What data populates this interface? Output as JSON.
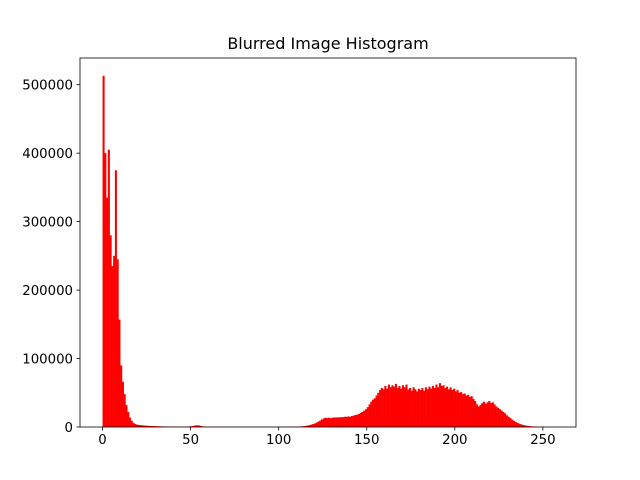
{
  "chart_data": {
    "type": "histogram",
    "title": "Blurred Image Histogram",
    "color": "#ff0000",
    "bins": [
      0,
      1,
      2,
      3,
      4,
      5,
      6,
      7,
      8,
      9,
      10,
      11,
      12,
      13,
      14,
      15,
      16,
      17,
      18,
      19,
      20,
      21,
      22,
      23,
      24,
      25,
      26,
      27,
      28,
      29,
      30,
      31,
      32,
      33,
      34,
      35,
      36,
      37,
      38,
      39,
      40,
      41,
      42,
      43,
      44,
      45,
      46,
      47,
      48,
      49,
      50,
      51,
      52,
      53,
      54,
      55,
      56,
      57,
      58,
      59,
      60,
      61,
      62,
      63,
      64,
      65,
      66,
      67,
      68,
      69,
      70,
      71,
      72,
      73,
      74,
      75,
      76,
      77,
      78,
      79,
      80,
      81,
      82,
      83,
      84,
      85,
      86,
      87,
      88,
      89,
      90,
      91,
      92,
      93,
      94,
      95,
      96,
      97,
      98,
      99,
      100,
      101,
      102,
      103,
      104,
      105,
      106,
      107,
      108,
      109,
      110,
      111,
      112,
      113,
      114,
      115,
      116,
      117,
      118,
      119,
      120,
      121,
      122,
      123,
      124,
      125,
      126,
      127,
      128,
      129,
      130,
      131,
      132,
      133,
      134,
      135,
      136,
      137,
      138,
      139,
      140,
      141,
      142,
      143,
      144,
      145,
      146,
      147,
      148,
      149,
      150,
      151,
      152,
      153,
      154,
      155,
      156,
      157,
      158,
      159,
      160,
      161,
      162,
      163,
      164,
      165,
      166,
      167,
      168,
      169,
      170,
      171,
      172,
      173,
      174,
      175,
      176,
      177,
      178,
      179,
      180,
      181,
      182,
      183,
      184,
      185,
      186,
      187,
      188,
      189,
      190,
      191,
      192,
      193,
      194,
      195,
      196,
      197,
      198,
      199,
      200,
      201,
      202,
      203,
      204,
      205,
      206,
      207,
      208,
      209,
      210,
      211,
      212,
      213,
      214,
      215,
      216,
      217,
      218,
      219,
      220,
      221,
      222,
      223,
      224,
      225,
      226,
      227,
      228,
      229,
      230,
      231,
      232,
      233,
      234,
      235,
      236,
      237,
      238,
      239,
      240,
      241,
      242,
      243,
      244,
      245,
      246,
      247,
      248,
      249,
      250,
      251,
      252,
      253,
      254,
      255,
      256
    ],
    "counts": [
      513000,
      400000,
      335000,
      405000,
      280000,
      235000,
      250000,
      375000,
      245000,
      157000,
      90000,
      66000,
      48000,
      32000,
      22000,
      14000,
      9000,
      6000,
      4500,
      3500,
      3000,
      2800,
      2500,
      2200,
      2000,
      1800,
      1600,
      1500,
      1400,
      1300,
      1200,
      1100,
      1000,
      900,
      800,
      700,
      650,
      600,
      550,
      500,
      480,
      460,
      440,
      420,
      400,
      400,
      420,
      500,
      700,
      900,
      1200,
      1600,
      2200,
      2500,
      2400,
      1800,
      1000,
      600,
      400,
      350,
      300,
      300,
      300,
      300,
      300,
      300,
      300,
      300,
      300,
      300,
      280,
      280,
      280,
      280,
      280,
      280,
      280,
      280,
      280,
      280,
      260,
      260,
      260,
      260,
      260,
      260,
      260,
      260,
      260,
      260,
      250,
      250,
      250,
      250,
      250,
      250,
      250,
      250,
      250,
      250,
      250,
      260,
      270,
      280,
      300,
      320,
      350,
      380,
      420,
      480,
      550,
      650,
      800,
      1000,
      1300,
      1700,
      2200,
      2800,
      3500,
      4300,
      5200,
      6500,
      8000,
      9500,
      11000,
      12500,
      13500,
      13000,
      13500,
      13000,
      13500,
      14000,
      13800,
      14200,
      14000,
      14500,
      14300,
      15000,
      14800,
      15500,
      15000,
      16000,
      16500,
      17500,
      18000,
      19000,
      20500,
      22000,
      24000,
      26000,
      29000,
      33000,
      37000,
      40000,
      42000,
      46000,
      50000,
      54000,
      57000,
      55000,
      60000,
      56000,
      62000,
      58000,
      61000,
      59000,
      63000,
      57000,
      60000,
      56000,
      61000,
      58000,
      62000,
      55000,
      57000,
      53000,
      58000,
      55000,
      52000,
      56000,
      54000,
      57000,
      53000,
      58000,
      55000,
      59000,
      56000,
      60000,
      57000,
      62000,
      58000,
      64000,
      60000,
      61000,
      57000,
      59000,
      55000,
      58000,
      54000,
      56000,
      52000,
      54000,
      50000,
      51000,
      48000,
      49000,
      46000,
      47000,
      44000,
      45000,
      41000,
      38000,
      33000,
      30000,
      32000,
      35000,
      37000,
      34000,
      36000,
      38000,
      35000,
      36000,
      33000,
      30000,
      28000,
      26000,
      24000,
      22000,
      20000,
      17000,
      15000,
      13000,
      11000,
      9000,
      7500,
      6000,
      5000,
      4000,
      3200,
      2500,
      2000,
      1600,
      1300,
      1000,
      800,
      600,
      500,
      400,
      300,
      250,
      200,
      150,
      120,
      100,
      80,
      60
    ],
    "xlim": [
      -12.8,
      268.8
    ],
    "ylim": [
      0,
      539000
    ],
    "xticks": [
      0,
      50,
      100,
      150,
      200,
      250
    ],
    "yticks": [
      0,
      100000,
      200000,
      300000,
      400000,
      500000
    ]
  }
}
